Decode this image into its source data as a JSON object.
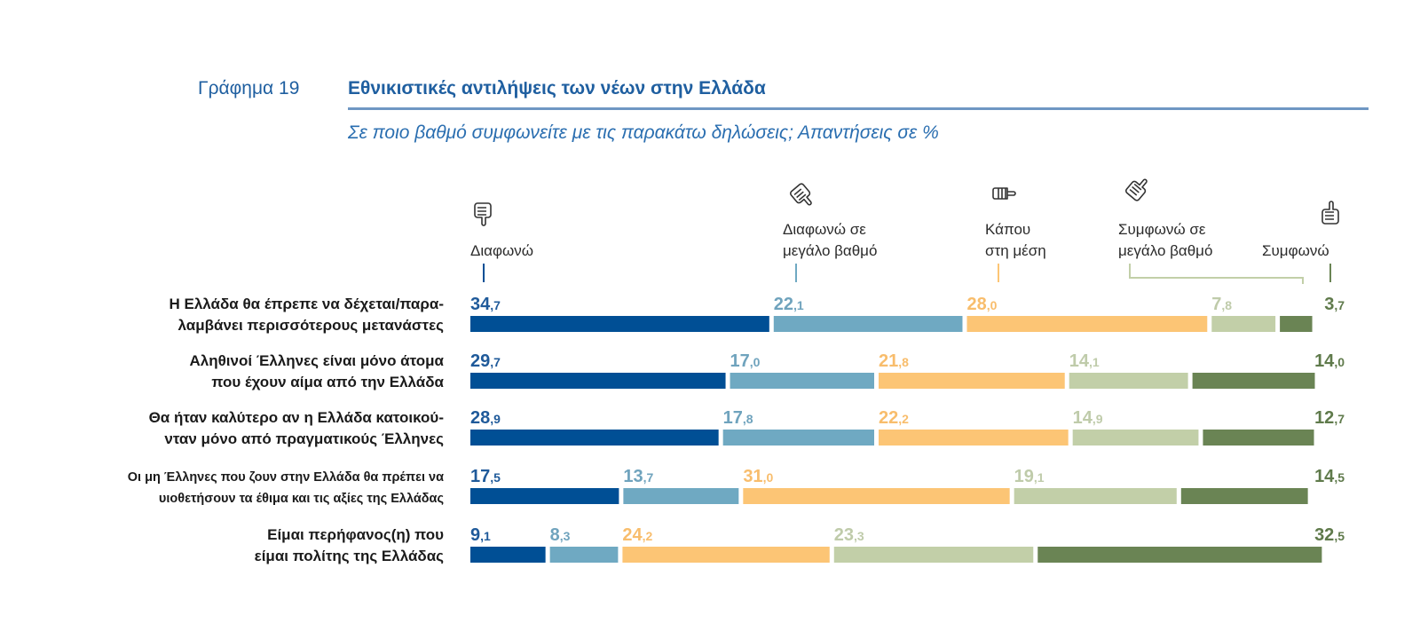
{
  "figure": {
    "number_label": "Γράφημα 19",
    "title": "Εθνικιστικές αντιλήψεις των νέων στην Ελλάδα",
    "subtitle": "Σε ποιο βαθμό συμφωνείτε με τις παρακάτω δηλώσεις; Απαντήσεις σε %"
  },
  "chart_data": {
    "type": "bar",
    "orientation": "horizontal",
    "stacked": true,
    "title": "Εθνικιστικές αντιλήψεις των νέων στην Ελλάδα",
    "subtitle": "Σε ποιο βαθμό συμφωνείτε με τις παρακάτω δηλώσεις; Απαντήσεις σε %",
    "unit": "%",
    "decimal_separator": ",",
    "xlim": [
      0,
      100
    ],
    "grid": false,
    "legend_position": "top",
    "categories": [
      [
        "Η Ελλάδα θα έπρεπε να δέχεται/παρα-",
        "λαμβάνει περισσότερους μετανάστες"
      ],
      [
        "Αληθινοί Έλληνες είναι μόνο άτομα",
        "που έχουν αίμα από την Ελλάδα"
      ],
      [
        "Θα ήταν καλύτερο αν η Ελλάδα κατοικού-",
        "νταν μόνο από πραγματικούς Έλληνες"
      ],
      [
        "Οι μη Έλληνες που ζουν στην Ελλάδα θα πρέπει να",
        "υιοθετήσουν τα έθιμα και τις αξίες της Ελλάδας"
      ],
      [
        "Είμαι περήφανος(η) που",
        "είμαι πολίτης της Ελλάδας"
      ]
    ],
    "series": [
      {
        "name": "Διαφωνώ",
        "label_lines": [
          "Διαφωνώ"
        ],
        "icon": "thumbs-down-icon",
        "color": "#004f95",
        "label_color": "#1f5a9a",
        "values": [
          34.7,
          29.7,
          28.9,
          17.5,
          9.1
        ]
      },
      {
        "name": "Διαφωνώ σε μεγάλο βαθμό",
        "label_lines": [
          "Διαφωνώ σε",
          "μεγάλο βαθμό"
        ],
        "icon": "thumb-down-tilted-icon",
        "color": "#6fa9c2",
        "label_color": "#6fa3bd",
        "values": [
          22.1,
          17.0,
          17.8,
          13.7,
          8.3
        ]
      },
      {
        "name": "Κάπου στη μέση",
        "label_lines": [
          "Κάπου",
          "στη μέση"
        ],
        "icon": "thumb-sideways-icon",
        "color": "#fcc575",
        "label_color": "#f8bd6c",
        "values": [
          28.0,
          21.8,
          22.2,
          31.0,
          24.2
        ]
      },
      {
        "name": "Συμφωνώ σε μεγάλο βαθμό",
        "label_lines": [
          "Συμφωνώ σε",
          "μεγάλο βαθμό"
        ],
        "icon": "thumb-up-tilted-icon",
        "color": "#c2cfa8",
        "label_color": "#bfcbaa",
        "values": [
          7.8,
          14.1,
          14.9,
          19.1,
          23.3
        ]
      },
      {
        "name": "Συμφωνώ",
        "label_lines": [
          "Συμφωνώ"
        ],
        "icon": "thumbs-up-icon",
        "color": "#6a8454",
        "label_color": "#5f7a4b",
        "values": [
          3.7,
          14.0,
          12.7,
          14.5,
          32.5
        ]
      }
    ]
  }
}
